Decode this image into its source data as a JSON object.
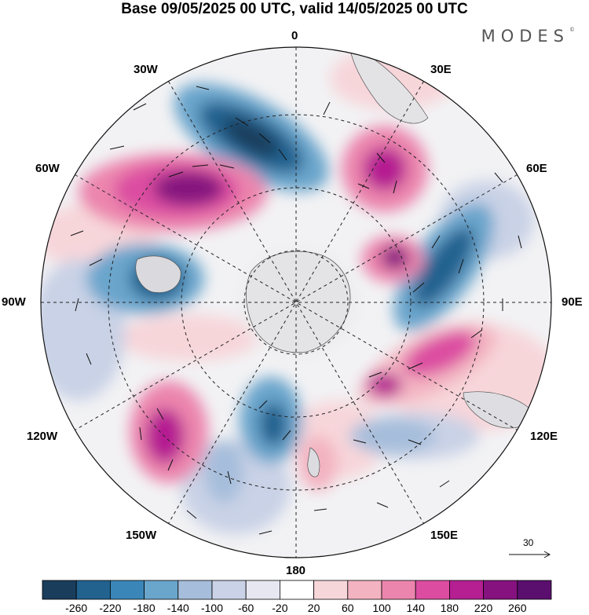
{
  "header": {
    "title": "Base 09/05/2025 00 UTC, valid 14/05/2025 00 UTC"
  },
  "branding": {
    "logo_text": "MODES"
  },
  "map": {
    "projection": "south polar stereographic",
    "longitude_labels": {
      "lon_0": "0",
      "lon_30e": "30E",
      "lon_60e": "60E",
      "lon_90e": "90E",
      "lon_120e": "120E",
      "lon_150e": "150E",
      "lon_180": "180",
      "lon_150w": "150W",
      "lon_120w": "120W",
      "lon_90w": "90W",
      "lon_60w": "60W",
      "lon_30w": "30W"
    },
    "vector_reference": {
      "value": "30"
    }
  },
  "colorbar": {
    "colors": [
      "#1a3d5c",
      "#22628f",
      "#3a86b8",
      "#6aa5cc",
      "#a6bedb",
      "#c9d2e6",
      "#e6e7f1",
      "#ffffff",
      "#f7d6da",
      "#f3b3c1",
      "#ec85ad",
      "#dc4da1",
      "#b51f92",
      "#86127f",
      "#5a0f6e"
    ],
    "ticks": [
      "-260",
      "-220",
      "-180",
      "-140",
      "-100",
      "-60",
      "-20",
      "20",
      "60",
      "100",
      "140",
      "180",
      "220",
      "260"
    ]
  }
}
